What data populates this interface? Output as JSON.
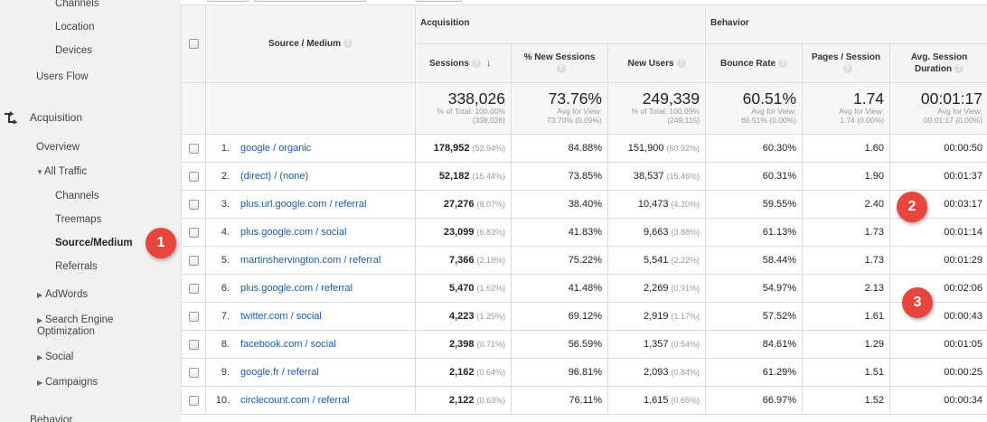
{
  "sidebar": {
    "items": [
      {
        "label": "Channels"
      },
      {
        "label": "Location"
      },
      {
        "label": "Devices"
      },
      {
        "label": "Users Flow"
      },
      {
        "label": "Acquisition"
      },
      {
        "label": "Overview"
      },
      {
        "label": "All Traffic"
      },
      {
        "label": "Channels"
      },
      {
        "label": "Treemaps"
      },
      {
        "label": "Source/Medium"
      },
      {
        "label": "Referrals"
      },
      {
        "label": "AdWords"
      },
      {
        "label": "Search Engine Optimization"
      },
      {
        "label": "Social"
      },
      {
        "label": "Campaigns"
      },
      {
        "label": "Behavior"
      }
    ]
  },
  "table": {
    "groups": {
      "acquisition": "Acquisition",
      "behavior": "Behavior"
    },
    "columns": {
      "source_medium": "Source / Medium",
      "sessions": "Sessions",
      "new_sessions": "% New Sessions",
      "new_users": "New Users",
      "bounce_rate": "Bounce Rate",
      "pages_session": "Pages / Session",
      "avg_duration": "Avg. Session Duration"
    },
    "totals": {
      "sessions": {
        "value": "338,026",
        "sub1": "% of Total: 100.00%",
        "sub2": "(338,026)"
      },
      "new_sessions": {
        "value": "73.76%",
        "sub1": "Avg for View:",
        "sub2": "73.70% (0.09%)"
      },
      "new_users": {
        "value": "249,339",
        "sub1": "% of Total: 100.09%",
        "sub2": "(249,115)"
      },
      "bounce_rate": {
        "value": "60.51%",
        "sub1": "Avg for View:",
        "sub2": "60.51% (0.00%)"
      },
      "pages_session": {
        "value": "1.74",
        "sub1": "Avg for View:",
        "sub2": "1.74 (0.00%)"
      },
      "avg_duration": {
        "value": "00:01:17",
        "sub1": "Avg for View:",
        "sub2": "00:01:17 (0.00%)"
      }
    },
    "rows": [
      {
        "index": "1.",
        "source": "google / organic",
        "sessions": "178,952",
        "sessions_pct": "(52.94%)",
        "new_sessions": "84.88%",
        "new_users": "151,900",
        "new_users_pct": "(60.92%)",
        "bounce_rate": "60.30%",
        "pages_session": "1.60",
        "avg_duration": "00:00:50"
      },
      {
        "index": "2.",
        "source": "(direct) / (none)",
        "sessions": "52,182",
        "sessions_pct": "(15.44%)",
        "new_sessions": "73.85%",
        "new_users": "38,537",
        "new_users_pct": "(15.46%)",
        "bounce_rate": "60.31%",
        "pages_session": "1.90",
        "avg_duration": "00:01:37"
      },
      {
        "index": "3.",
        "source": "plus.url.google.com / referral",
        "sessions": "27,276",
        "sessions_pct": "(8.07%)",
        "new_sessions": "38.40%",
        "new_users": "10,473",
        "new_users_pct": "(4.20%)",
        "bounce_rate": "59.55%",
        "pages_session": "2.40",
        "avg_duration": "00:03:17"
      },
      {
        "index": "4.",
        "source": "plus.google.com / social",
        "sessions": "23,099",
        "sessions_pct": "(6.83%)",
        "new_sessions": "41.83%",
        "new_users": "9,663",
        "new_users_pct": "(3.88%)",
        "bounce_rate": "61.13%",
        "pages_session": "1.73",
        "avg_duration": "00:01:14"
      },
      {
        "index": "5.",
        "source": "martinshervington.com / referral",
        "sessions": "7,366",
        "sessions_pct": "(2.18%)",
        "new_sessions": "75.22%",
        "new_users": "5,541",
        "new_users_pct": "(2.22%)",
        "bounce_rate": "58.44%",
        "pages_session": "1.73",
        "avg_duration": "00:01:29"
      },
      {
        "index": "6.",
        "source": "plus.google.com / referral",
        "sessions": "5,470",
        "sessions_pct": "(1.62%)",
        "new_sessions": "41.48%",
        "new_users": "2,269",
        "new_users_pct": "(0.91%)",
        "bounce_rate": "54.97%",
        "pages_session": "2.13",
        "avg_duration": "00:02:06"
      },
      {
        "index": "7.",
        "source": "twitter.com / social",
        "sessions": "4,223",
        "sessions_pct": "(1.25%)",
        "new_sessions": "69.12%",
        "new_users": "2,919",
        "new_users_pct": "(1.17%)",
        "bounce_rate": "57.52%",
        "pages_session": "1.61",
        "avg_duration": "00:00:43"
      },
      {
        "index": "8.",
        "source": "facebook.com / social",
        "sessions": "2,398",
        "sessions_pct": "(0.71%)",
        "new_sessions": "56.59%",
        "new_users": "1,357",
        "new_users_pct": "(0.54%)",
        "bounce_rate": "84.61%",
        "pages_session": "1.29",
        "avg_duration": "00:01:05"
      },
      {
        "index": "9.",
        "source": "google.fr / referral",
        "sessions": "2,162",
        "sessions_pct": "(0.64%)",
        "new_sessions": "96.81%",
        "new_users": "2,093",
        "new_users_pct": "(0.84%)",
        "bounce_rate": "61.29%",
        "pages_session": "1.51",
        "avg_duration": "00:00:25"
      },
      {
        "index": "10.",
        "source": "circlecount.com / referral",
        "sessions": "2,122",
        "sessions_pct": "(0.63%)",
        "new_sessions": "76.11%",
        "new_users": "1,615",
        "new_users_pct": "(0.65%)",
        "bounce_rate": "66.97%",
        "pages_session": "1.52",
        "avg_duration": "00:00:34"
      }
    ]
  },
  "markers": [
    {
      "label": "1"
    },
    {
      "label": "2"
    },
    {
      "label": "3"
    }
  ],
  "icons": {
    "help": "question-mark-icon",
    "sort": "sort-descending-icon",
    "acquisition": "acquisition-arrows-icon"
  },
  "colors": {
    "link": "#1a5ea8",
    "marker": "#e8453c"
  }
}
